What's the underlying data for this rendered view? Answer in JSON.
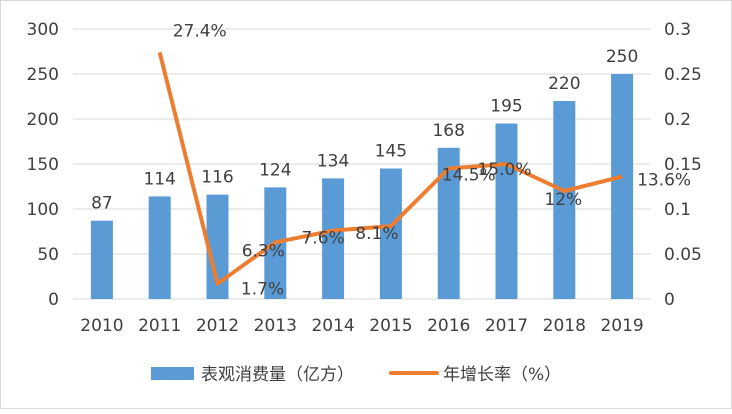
{
  "chart_data": {
    "type": "bar+line",
    "categories": [
      "2010",
      "2011",
      "2012",
      "2013",
      "2014",
      "2015",
      "2016",
      "2017",
      "2018",
      "2019"
    ],
    "series": [
      {
        "name": "表观消费量（亿方）",
        "type": "bar",
        "axis": "left",
        "color": "#5b9bd5",
        "values": [
          87,
          114,
          116,
          124,
          134,
          145,
          168,
          195,
          220,
          250
        ],
        "labels": [
          "87",
          "114",
          "116",
          "124",
          "134",
          "145",
          "168",
          "195",
          "220",
          "250"
        ]
      },
      {
        "name": "年增长率（%）",
        "type": "line",
        "axis": "right",
        "color": "#ed7d31",
        "values": [
          null,
          0.274,
          0.017,
          0.063,
          0.076,
          0.081,
          0.145,
          0.15,
          0.12,
          0.136
        ],
        "labels": [
          "",
          "27.4%",
          "1.7%",
          "6.3%",
          "7.6%",
          "8.1%",
          "14.5%",
          "15.0%",
          "12%",
          "13.6%"
        ]
      }
    ],
    "y_left": {
      "range": [
        0,
        300
      ],
      "ticks": [
        "0",
        "50",
        "100",
        "150",
        "200",
        "250",
        "300"
      ]
    },
    "y_right": {
      "range": [
        0,
        0.3
      ],
      "ticks": [
        "0",
        "0.05",
        "0.1",
        "0.15",
        "0.2",
        "0.25",
        "0.3"
      ]
    },
    "grid": true,
    "legend": "bottom"
  }
}
